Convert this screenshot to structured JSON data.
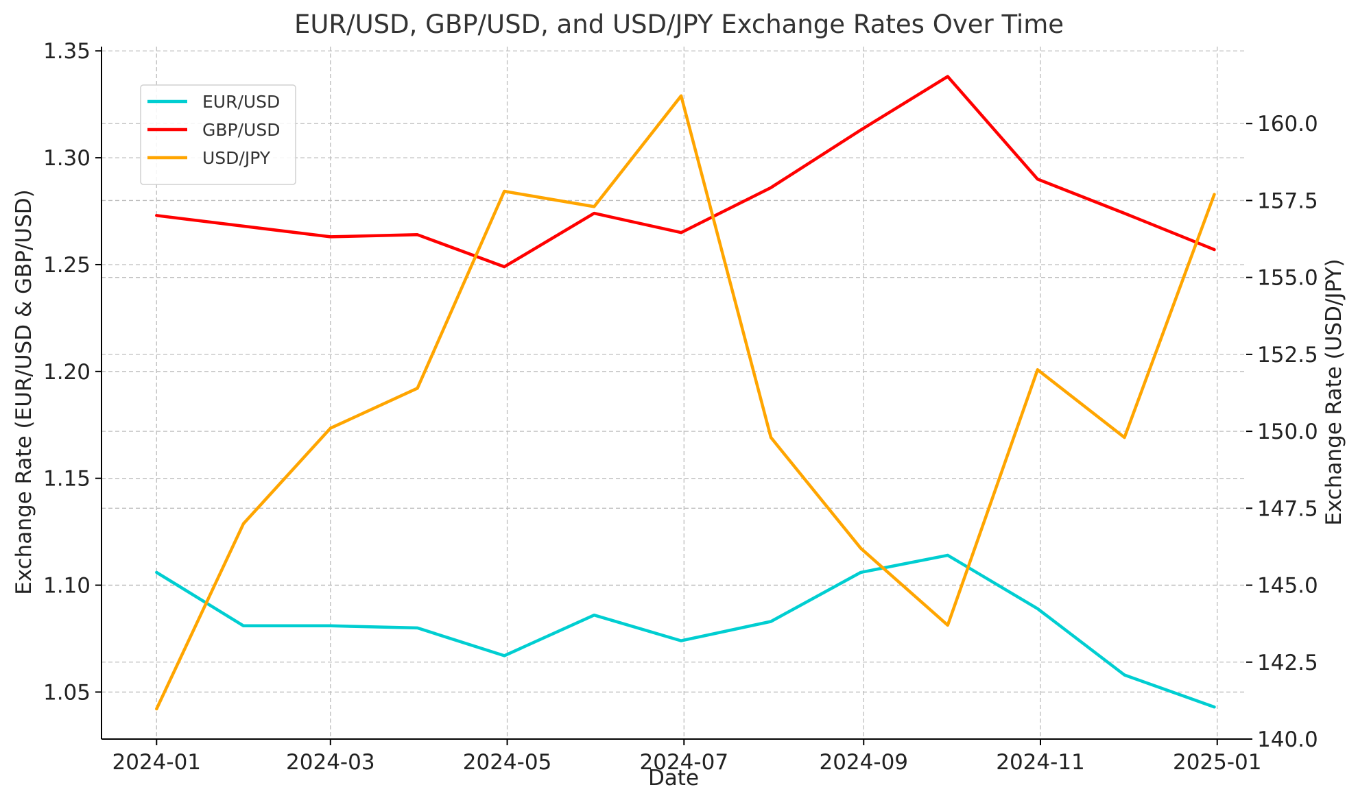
{
  "chart_data": {
    "type": "line",
    "title": "EUR/USD, GBP/USD, and USD/JPY Exchange Rates Over Time",
    "xlabel": "Date",
    "ylabel_left": "Exchange Rate (EUR/USD & GBP/USD)",
    "ylabel_right": "Exchange Rate (USD/JPY)",
    "x": [
      "2024-01-01",
      "2024-01-31",
      "2024-03-01",
      "2024-03-31",
      "2024-04-30",
      "2024-05-31",
      "2024-06-30",
      "2024-07-31",
      "2024-08-31",
      "2024-09-30",
      "2024-10-31",
      "2024-11-30",
      "2024-12-31"
    ],
    "xlim": [
      "2023-12-13",
      "2025-01-11"
    ],
    "x_ticks": [
      "2024-01-01",
      "2024-03-01",
      "2024-05-01",
      "2024-07-01",
      "2024-09-01",
      "2024-11-01",
      "2025-01-01"
    ],
    "x_tick_labels": [
      "2024-01",
      "2024-03",
      "2024-05",
      "2024-07",
      "2024-09",
      "2024-11",
      "2025-01"
    ],
    "ylim_left": [
      1.028,
      1.352
    ],
    "y_ticks_left": [
      "1.05",
      "1.10",
      "1.15",
      "1.20",
      "1.25",
      "1.30",
      "1.35"
    ],
    "ylim_right": [
      140.0,
      162.5
    ],
    "y_ticks_right": [
      "140.0",
      "142.5",
      "145.0",
      "147.5",
      "150.0",
      "152.5",
      "155.0",
      "157.5",
      "160.0"
    ],
    "grid": true,
    "legend_position": "top-left",
    "series": [
      {
        "name": "EUR/USD",
        "axis": "left",
        "color": "#00ced1",
        "values": [
          1.106,
          1.081,
          1.081,
          1.08,
          1.067,
          1.086,
          1.074,
          1.083,
          1.106,
          1.114,
          1.089,
          1.058,
          1.043
        ]
      },
      {
        "name": "GBP/USD",
        "axis": "left",
        "color": "#ff0000",
        "values": [
          1.273,
          1.268,
          1.263,
          1.264,
          1.249,
          1.274,
          1.265,
          1.286,
          1.313,
          1.338,
          1.29,
          1.274,
          1.257
        ]
      },
      {
        "name": "USD/JPY",
        "axis": "right",
        "color": "#ffa500",
        "values": [
          140.98,
          147.0,
          150.1,
          151.4,
          157.8,
          157.3,
          160.9,
          149.8,
          146.2,
          143.7,
          152.0,
          149.8,
          157.7
        ]
      }
    ]
  }
}
